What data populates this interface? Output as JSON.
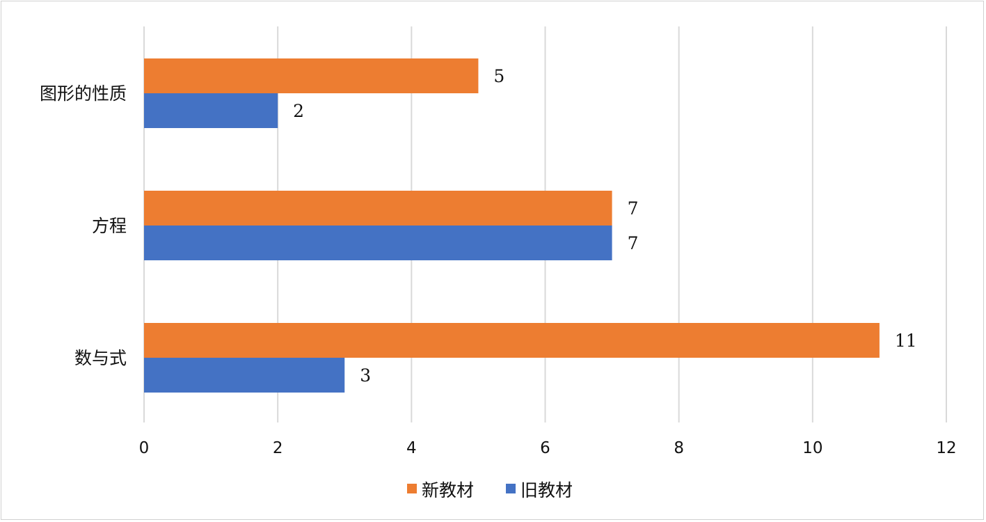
{
  "chart_data": {
    "type": "bar",
    "orientation": "horizontal",
    "title": "",
    "xlabel": "",
    "ylabel": "",
    "categories": [
      "图形的性质",
      "方程",
      "数与式"
    ],
    "series": [
      {
        "name": "新教材",
        "values": [
          5,
          7,
          11
        ],
        "color": "#ED7D31"
      },
      {
        "name": "旧教材",
        "values": [
          2,
          7,
          3
        ],
        "color": "#4472C4"
      }
    ],
    "xlim": [
      0,
      12
    ],
    "xticks": [
      0,
      2,
      4,
      6,
      8,
      10,
      12
    ],
    "grid": true,
    "data_labels": true,
    "legend_position": "bottom"
  }
}
